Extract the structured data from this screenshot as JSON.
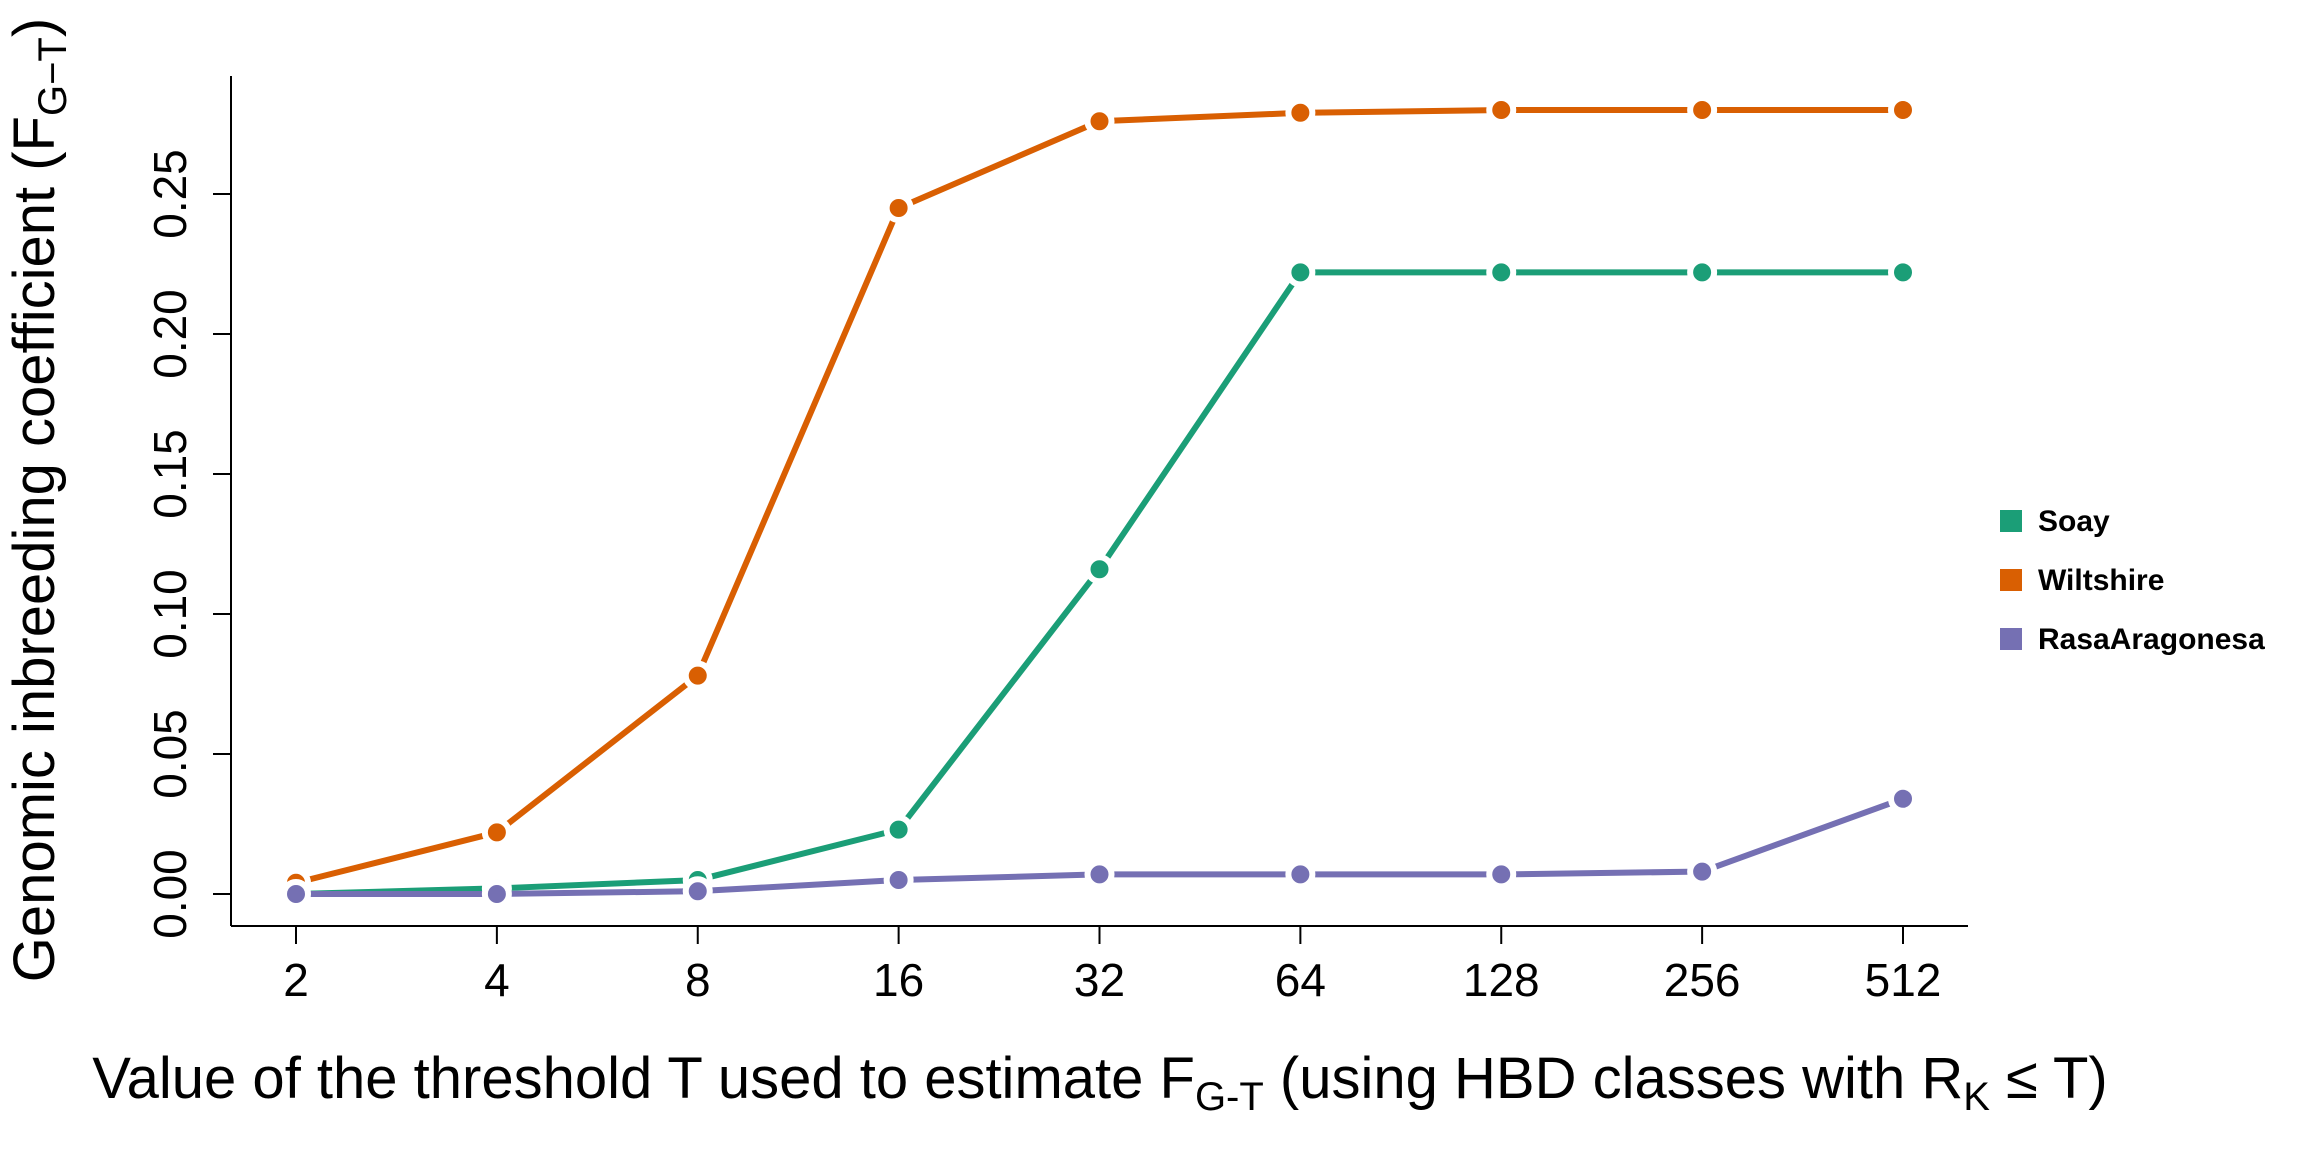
{
  "chart_data": {
    "type": "line",
    "x_scale": "log2",
    "categories": [
      "2",
      "4",
      "8",
      "16",
      "32",
      "64",
      "128",
      "256",
      "512"
    ],
    "x": [
      2,
      4,
      8,
      16,
      32,
      64,
      128,
      256,
      512
    ],
    "xlabel": {
      "main": "Value of the threshold T used to estimate F",
      "sub": "G-T",
      "rest": " (using HBD classes with R",
      "sub2": "K",
      "rest2": " ≤  T)"
    },
    "ylabel": {
      "main": "Genomic inbreeding coefficient  (F",
      "sub": "G−T",
      "rest": ")"
    },
    "ylim": [
      -0.011,
      0.292
    ],
    "yticks": [
      "0.00",
      "0.05",
      "0.10",
      "0.15",
      "0.20",
      "0.25"
    ],
    "ytick_values": [
      0,
      0.05,
      0.1,
      0.15,
      0.2,
      0.25
    ],
    "grid": false,
    "legend_position": "right",
    "series": [
      {
        "name": "Soay",
        "color": "#1b9e77",
        "values": [
          0.0,
          0.002,
          0.005,
          0.023,
          0.116,
          0.222,
          0.222,
          0.222,
          0.222
        ]
      },
      {
        "name": "Wiltshire",
        "color": "#d95f02",
        "values": [
          0.004,
          0.022,
          0.078,
          0.245,
          0.276,
          0.279,
          0.28,
          0.28,
          0.28
        ]
      },
      {
        "name": "RasaAragonesa",
        "color": "#7570b3",
        "values": [
          0.0,
          0.0,
          0.001,
          0.005,
          0.007,
          0.007,
          0.007,
          0.008,
          0.034
        ]
      }
    ]
  }
}
